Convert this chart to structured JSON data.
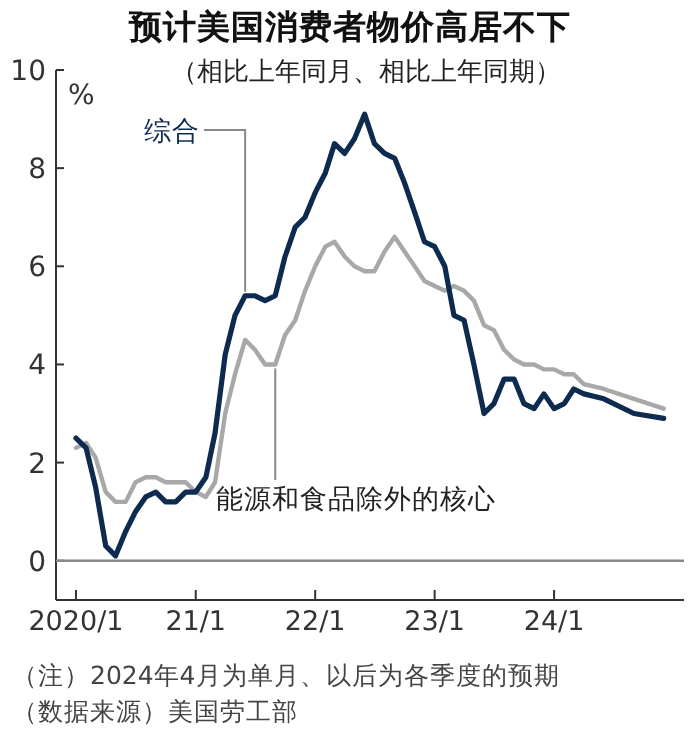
{
  "chart_data": {
    "type": "line",
    "title": "预计美国消费者物价高居不下",
    "subtitle": "（相比上年同月、相比上年同期）",
    "ylabel": "%",
    "x": [
      "2020-01",
      "2020-02",
      "2020-03",
      "2020-04",
      "2020-05",
      "2020-06",
      "2020-07",
      "2020-08",
      "2020-09",
      "2020-10",
      "2020-11",
      "2020-12",
      "2021-01",
      "2021-02",
      "2021-03",
      "2021-04",
      "2021-05",
      "2021-06",
      "2021-07",
      "2021-08",
      "2021-09",
      "2021-10",
      "2021-11",
      "2021-12",
      "2022-01",
      "2022-02",
      "2022-03",
      "2022-04",
      "2022-05",
      "2022-06",
      "2022-07",
      "2022-08",
      "2022-09",
      "2022-10",
      "2022-11",
      "2022-12",
      "2023-01",
      "2023-02",
      "2023-03",
      "2023-04",
      "2023-05",
      "2023-06",
      "2023-07",
      "2023-08",
      "2023-09",
      "2023-10",
      "2023-11",
      "2023-12",
      "2024-01",
      "2024-02",
      "2024-03",
      "2024-04",
      "2024-06",
      "2024-09",
      "2024-12"
    ],
    "series": [
      {
        "name": "综合",
        "color": "#0d2b4e",
        "values": [
          2.5,
          2.3,
          1.5,
          0.3,
          0.1,
          0.6,
          1.0,
          1.3,
          1.4,
          1.2,
          1.2,
          1.4,
          1.4,
          1.7,
          2.6,
          4.2,
          5.0,
          5.4,
          5.4,
          5.3,
          5.4,
          6.2,
          6.8,
          7.0,
          7.5,
          7.9,
          8.5,
          8.3,
          8.6,
          9.1,
          8.5,
          8.3,
          8.2,
          7.7,
          7.1,
          6.5,
          6.4,
          6.0,
          5.0,
          4.9,
          4.0,
          3.0,
          3.2,
          3.7,
          3.7,
          3.2,
          3.1,
          3.4,
          3.1,
          3.2,
          3.5,
          3.4,
          3.3,
          3.0,
          2.9
        ]
      },
      {
        "name": "能源和食品除外的核心",
        "color": "#a8a8a8",
        "values": [
          2.3,
          2.4,
          2.1,
          1.4,
          1.2,
          1.2,
          1.6,
          1.7,
          1.7,
          1.6,
          1.6,
          1.6,
          1.4,
          1.3,
          1.6,
          3.0,
          3.8,
          4.5,
          4.3,
          4.0,
          4.0,
          4.6,
          4.9,
          5.5,
          6.0,
          6.4,
          6.5,
          6.2,
          6.0,
          5.9,
          5.9,
          6.3,
          6.6,
          6.3,
          6.0,
          5.7,
          5.6,
          5.5,
          5.6,
          5.5,
          5.3,
          4.8,
          4.7,
          4.3,
          4.1,
          4.0,
          4.0,
          3.9,
          3.9,
          3.8,
          3.8,
          3.6,
          3.5,
          3.3,
          3.1
        ]
      }
    ],
    "xlim": [
      "2019-11",
      "2025-02"
    ],
    "xticks": [
      {
        "value": "2020-01",
        "label": "2020/1"
      },
      {
        "value": "2021-01",
        "label": "21/1"
      },
      {
        "value": "2022-01",
        "label": "22/1"
      },
      {
        "value": "2023-01",
        "label": "23/1"
      },
      {
        "value": "2024-01",
        "label": "24/1"
      }
    ],
    "ylim": [
      -0.8,
      10
    ],
    "yticks": [
      0,
      2,
      4,
      6,
      8,
      10
    ],
    "ref_lines": [
      {
        "axis": "y",
        "value": 0,
        "color": "#888888"
      }
    ],
    "grid": false,
    "annotations": [
      "（注）2024年4月为单月、以后为各季度的预期",
      "（数据来源）美国劳工部"
    ]
  }
}
